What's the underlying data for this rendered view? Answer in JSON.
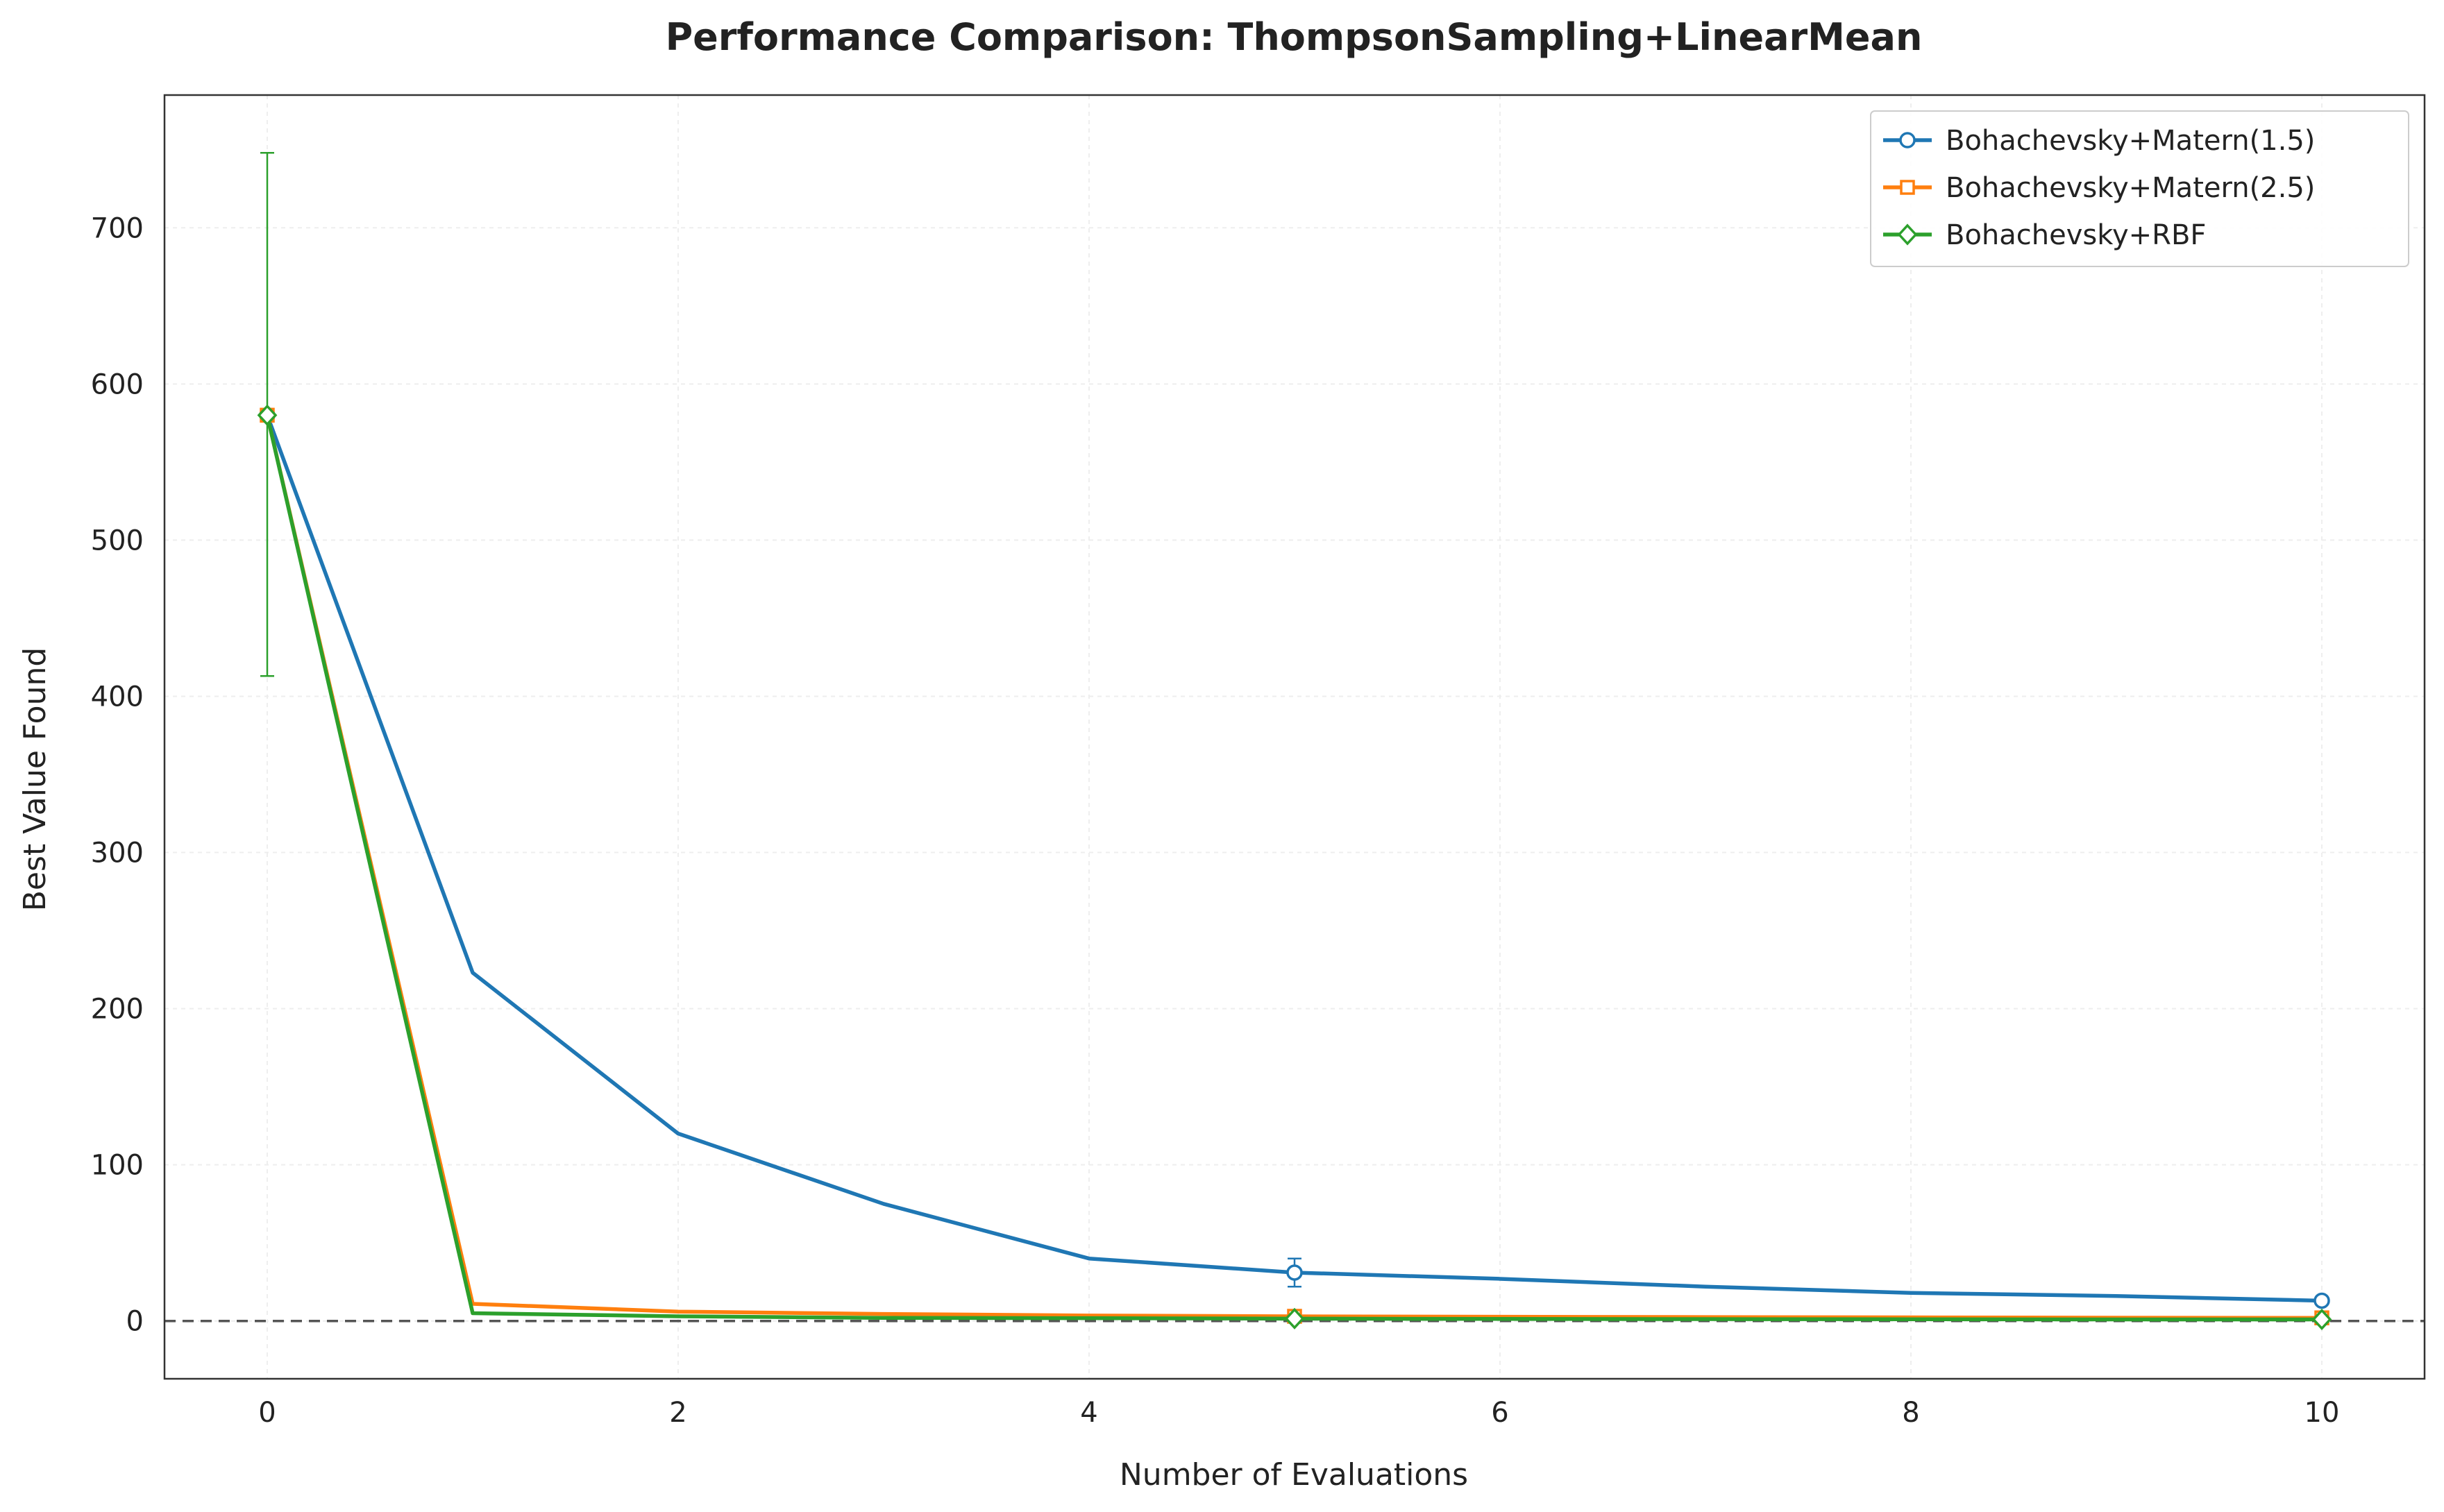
{
  "chart_data": {
    "type": "line",
    "title": "Performance Comparison: ThompsonSampling+LinearMean",
    "xlabel": "Number of Evaluations",
    "ylabel": "Best Value Found",
    "xlim": [
      -0.5,
      10.5
    ],
    "ylim": [
      -37,
      785
    ],
    "xticks": [
      0,
      2,
      4,
      6,
      8,
      10
    ],
    "yticks": [
      0,
      100,
      200,
      300,
      400,
      500,
      600,
      700
    ],
    "grid": true,
    "legend_position": "top-right",
    "reference_line": {
      "y": 0,
      "style": "dashed",
      "color": "#555555"
    },
    "series": [
      {
        "name": "Bohachevsky+Matern(1.5)",
        "color": "#1f77b4",
        "marker": "circle",
        "x": [
          0,
          1,
          2,
          3,
          4,
          5,
          6,
          7,
          8,
          9,
          10
        ],
        "y": [
          580,
          223,
          120,
          75,
          40,
          31,
          27,
          22,
          18,
          16,
          13
        ],
        "marker_x": [
          0,
          5,
          10
        ],
        "error_bars": [
          {
            "x": 5,
            "low": 22,
            "high": 40
          },
          {
            "x": 10,
            "low": 11,
            "high": 15
          }
        ]
      },
      {
        "name": "Bohachevsky+Matern(2.5)",
        "color": "#ff7f0e",
        "marker": "square",
        "x": [
          0,
          1,
          2,
          3,
          4,
          5,
          6,
          7,
          8,
          9,
          10
        ],
        "y": [
          580,
          11,
          6,
          4.5,
          3.5,
          3,
          2.7,
          2.5,
          2.3,
          2.1,
          2
        ],
        "marker_x": [
          0,
          5,
          10
        ],
        "error_bars": []
      },
      {
        "name": "Bohachevsky+RBF",
        "color": "#2ca02c",
        "marker": "diamond",
        "x": [
          0,
          1,
          2,
          3,
          4,
          5,
          6,
          7,
          8,
          9,
          10
        ],
        "y": [
          580,
          5,
          3,
          2,
          1.8,
          1.5,
          1.3,
          1.2,
          1.1,
          1.0,
          1.0
        ],
        "marker_x": [
          0,
          5,
          10
        ],
        "error_bars": [
          {
            "x": 0,
            "low": 413,
            "high": 748
          }
        ]
      }
    ]
  }
}
